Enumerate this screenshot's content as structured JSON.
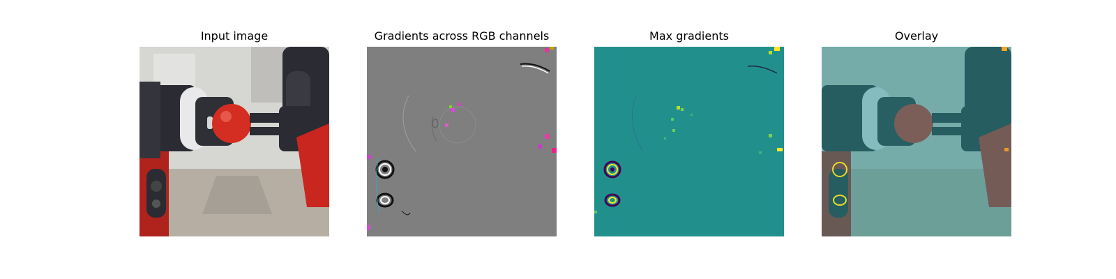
{
  "figure": {
    "panels": [
      {
        "title": "Input image"
      },
      {
        "title": "Gradients across RGB channels"
      },
      {
        "title": "Max gradients"
      },
      {
        "title": "Overlay"
      }
    ]
  },
  "colors": {
    "background": "#ffffff",
    "gradient_neutral_gray": "#7f7f7f",
    "max_gradient_teal": "#21908d",
    "max_gradient_high_yellow": "#fde725",
    "overlay_tint": "#6fb9b4",
    "robot_red": "#c8261e",
    "robot_dark": "#2b2b33"
  }
}
